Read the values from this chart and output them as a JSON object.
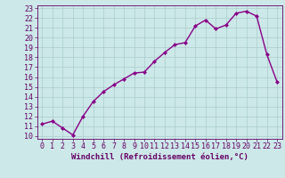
{
  "x": [
    0,
    1,
    2,
    3,
    4,
    5,
    6,
    7,
    8,
    9,
    10,
    11,
    12,
    13,
    14,
    15,
    16,
    17,
    18,
    19,
    20,
    21,
    22,
    23
  ],
  "y": [
    11.2,
    11.5,
    10.8,
    10.1,
    12.0,
    13.5,
    14.5,
    15.2,
    15.8,
    16.4,
    16.5,
    17.6,
    18.5,
    19.3,
    19.5,
    21.2,
    21.8,
    20.9,
    21.3,
    22.5,
    22.7,
    22.2,
    18.3,
    15.5
  ],
  "line_color": "#880088",
  "marker": "D",
  "marker_size": 2,
  "bg_color": "#cce8e8",
  "grid_color": "#aacccc",
  "xlabel": "Windchill (Refroidissement éolien,°C)",
  "xlabel_color": "#660066",
  "xlabel_fontsize": 6.5,
  "tick_color": "#660066",
  "tick_fontsize": 6,
  "ylim": [
    10,
    23
  ],
  "xlim": [
    -0.5,
    23.5
  ],
  "yticks": [
    10,
    11,
    12,
    13,
    14,
    15,
    16,
    17,
    18,
    19,
    20,
    21,
    22,
    23
  ],
  "xticks": [
    0,
    1,
    2,
    3,
    4,
    5,
    6,
    7,
    8,
    9,
    10,
    11,
    12,
    13,
    14,
    15,
    16,
    17,
    18,
    19,
    20,
    21,
    22,
    23
  ],
  "spine_color": "#660066",
  "linewidth": 1.0
}
